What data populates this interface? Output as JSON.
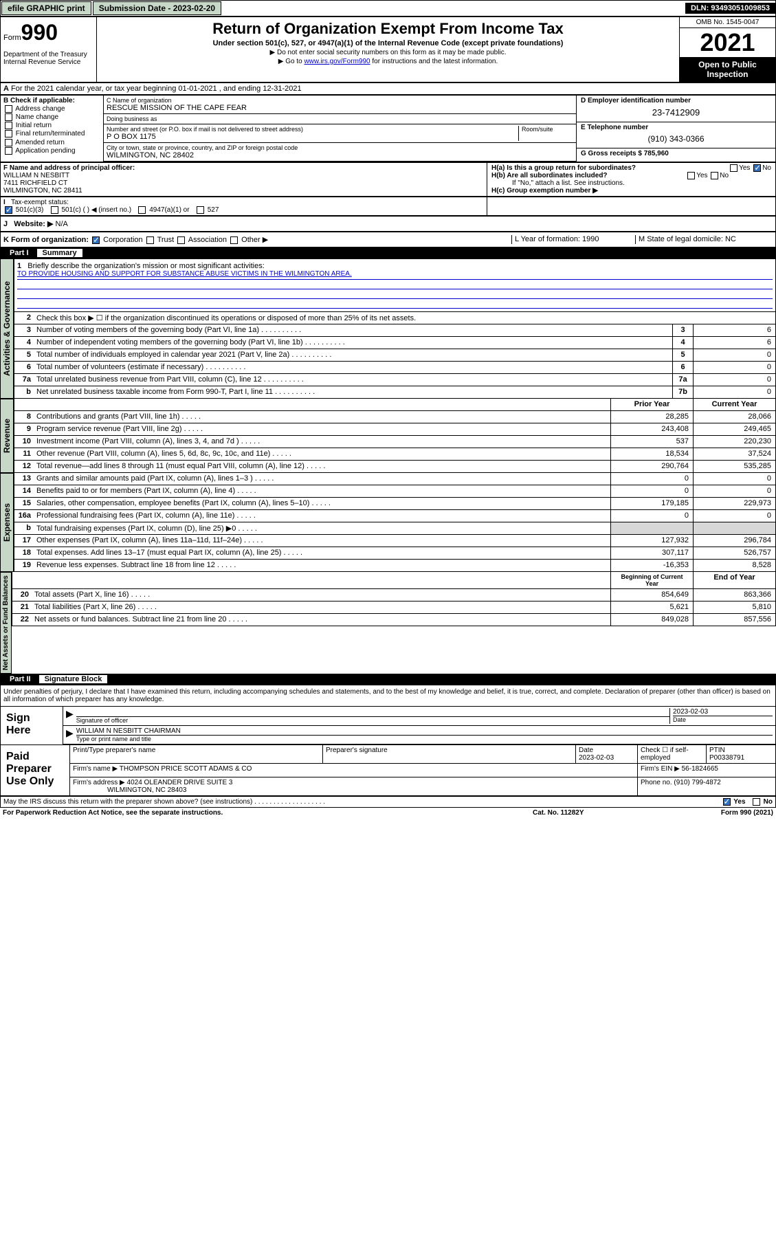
{
  "topbar": {
    "efile": "efile GRAPHIC print",
    "sub_label": "Submission Date - 2023-02-20",
    "dln": "DLN: 93493051009853"
  },
  "header": {
    "form_prefix": "Form",
    "form_num": "990",
    "dept": "Department of the Treasury\nInternal Revenue Service",
    "title": "Return of Organization Exempt From Income Tax",
    "sub1": "Under section 501(c), 527, or 4947(a)(1) of the Internal Revenue Code (except private foundations)",
    "note1": "▶ Do not enter social security numbers on this form as it may be made public.",
    "note2_pre": "▶ Go to ",
    "note2_link": "www.irs.gov/Form990",
    "note2_post": " for instructions and the latest information.",
    "omb": "OMB No. 1545-0047",
    "year": "2021",
    "inspect": "Open to Public Inspection"
  },
  "row_a": {
    "text": "For the 2021 calendar year, or tax year beginning 01-01-2021   , and ending 12-31-2021"
  },
  "col_b": {
    "hdr": "B Check if applicable:",
    "items": [
      "Address change",
      "Name change",
      "Initial return",
      "Final return/terminated",
      "Amended return",
      "Application pending"
    ]
  },
  "col_c": {
    "name_label": "C Name of organization",
    "name": "RESCUE MISSION OF THE CAPE FEAR",
    "dba_label": "Doing business as",
    "dba": "",
    "addr_label": "Number and street (or P.O. box if mail is not delivered to street address)",
    "room_label": "Room/suite",
    "addr": "P O BOX 1175",
    "city_label": "City or town, state or province, country, and ZIP or foreign postal code",
    "city": "WILMINGTON, NC  28402"
  },
  "col_d": {
    "d_label": "D Employer identification number",
    "d_val": "23-7412909",
    "e_label": "E Telephone number",
    "e_val": "(910) 343-0366",
    "g_label": "G Gross receipts $",
    "g_val": "785,960"
  },
  "row_f": {
    "label": "F Name and address of principal officer:",
    "name": "WILLIAM N NESBITT",
    "addr": "7411 RICHFIELD CT",
    "city": "WILMINGTON, NC  28411"
  },
  "row_h": {
    "a": "H(a)  Is this a group return for subordinates?",
    "a_yes": "Yes",
    "a_no": "No",
    "b": "H(b)  Are all subordinates included?",
    "b_yes": "Yes",
    "b_no": "No",
    "b_note": "If \"No,\" attach a list. See instructions.",
    "c": "H(c)  Group exemption number ▶"
  },
  "row_i": {
    "label": "Tax-exempt status:",
    "opts": [
      "501(c)(3)",
      "501(c) (  ) ◀ (insert no.)",
      "4947(a)(1) or",
      "527"
    ]
  },
  "row_j": {
    "label": "Website: ▶",
    "val": "N/A"
  },
  "row_k": {
    "k": "K Form of organization:",
    "opts": [
      "Corporation",
      "Trust",
      "Association",
      "Other ▶"
    ],
    "l": "L Year of formation: 1990",
    "m": "M State of legal domicile: NC"
  },
  "part1": {
    "num": "Part I",
    "title": "Summary"
  },
  "mission": {
    "q": "Briefly describe the organization's mission or most significant activities:",
    "text": "TO PROVIDE HOUSING AND SUPPORT FOR SUBSTANCE ABUSE VICTIMS IN THE WILMINGTON AREA."
  },
  "lines_gov": [
    {
      "n": "2",
      "d": "Check this box ▶ ☐  if the organization discontinued its operations or disposed of more than 25% of its net assets."
    },
    {
      "n": "3",
      "d": "Number of voting members of the governing body (Part VI, line 1a)",
      "b": "3",
      "v": "6"
    },
    {
      "n": "4",
      "d": "Number of independent voting members of the governing body (Part VI, line 1b)",
      "b": "4",
      "v": "6"
    },
    {
      "n": "5",
      "d": "Total number of individuals employed in calendar year 2021 (Part V, line 2a)",
      "b": "5",
      "v": "0"
    },
    {
      "n": "6",
      "d": "Total number of volunteers (estimate if necessary)",
      "b": "6",
      "v": "0"
    },
    {
      "n": "7a",
      "d": "Total unrelated business revenue from Part VIII, column (C), line 12",
      "b": "7a",
      "v": "0"
    },
    {
      "n": "b",
      "d": "Net unrelated business taxable income from Form 990-T, Part I, line 11",
      "b": "7b",
      "v": "0"
    }
  ],
  "rev_hdr": {
    "prior": "Prior Year",
    "curr": "Current Year"
  },
  "lines_rev": [
    {
      "n": "8",
      "d": "Contributions and grants (Part VIII, line 1h)",
      "p": "28,285",
      "c": "28,066"
    },
    {
      "n": "9",
      "d": "Program service revenue (Part VIII, line 2g)",
      "p": "243,408",
      "c": "249,465"
    },
    {
      "n": "10",
      "d": "Investment income (Part VIII, column (A), lines 3, 4, and 7d )",
      "p": "537",
      "c": "220,230"
    },
    {
      "n": "11",
      "d": "Other revenue (Part VIII, column (A), lines 5, 6d, 8c, 9c, 10c, and 11e)",
      "p": "18,534",
      "c": "37,524"
    },
    {
      "n": "12",
      "d": "Total revenue—add lines 8 through 11 (must equal Part VIII, column (A), line 12)",
      "p": "290,764",
      "c": "535,285"
    }
  ],
  "lines_exp": [
    {
      "n": "13",
      "d": "Grants and similar amounts paid (Part IX, column (A), lines 1–3 )",
      "p": "0",
      "c": "0"
    },
    {
      "n": "14",
      "d": "Benefits paid to or for members (Part IX, column (A), line 4)",
      "p": "0",
      "c": "0"
    },
    {
      "n": "15",
      "d": "Salaries, other compensation, employee benefits (Part IX, column (A), lines 5–10)",
      "p": "179,185",
      "c": "229,973"
    },
    {
      "n": "16a",
      "d": "Professional fundraising fees (Part IX, column (A), line 11e)",
      "p": "0",
      "c": "0"
    },
    {
      "n": "b",
      "d": "Total fundraising expenses (Part IX, column (D), line 25) ▶0",
      "p": "",
      "c": "",
      "gray": true
    },
    {
      "n": "17",
      "d": "Other expenses (Part IX, column (A), lines 11a–11d, 11f–24e)",
      "p": "127,932",
      "c": "296,784"
    },
    {
      "n": "18",
      "d": "Total expenses. Add lines 13–17 (must equal Part IX, column (A), line 25)",
      "p": "307,117",
      "c": "526,757"
    },
    {
      "n": "19",
      "d": "Revenue less expenses. Subtract line 18 from line 12",
      "p": "-16,353",
      "c": "8,528"
    }
  ],
  "na_hdr": {
    "beg": "Beginning of Current Year",
    "end": "End of Year"
  },
  "lines_na": [
    {
      "n": "20",
      "d": "Total assets (Part X, line 16)",
      "p": "854,649",
      "c": "863,366"
    },
    {
      "n": "21",
      "d": "Total liabilities (Part X, line 26)",
      "p": "5,621",
      "c": "5,810"
    },
    {
      "n": "22",
      "d": "Net assets or fund balances. Subtract line 21 from line 20",
      "p": "849,028",
      "c": "857,556"
    }
  ],
  "vert": {
    "gov": "Activities & Governance",
    "rev": "Revenue",
    "exp": "Expenses",
    "na": "Net Assets or\nFund Balances"
  },
  "part2": {
    "num": "Part II",
    "title": "Signature Block"
  },
  "sig": {
    "intro": "Under penalties of perjury, I declare that I have examined this return, including accompanying schedules and statements, and to the best of my knowledge and belief, it is true, correct, and complete. Declaration of preparer (other than officer) is based on all information of which preparer has any knowledge.",
    "here": "Sign Here",
    "sig_label": "Signature of officer",
    "date": "2023-02-03",
    "date_label": "Date",
    "name": "WILLIAM N NESBITT CHAIRMAN",
    "name_label": "Type or print name and title"
  },
  "prep": {
    "label": "Paid Preparer Use Only",
    "h1": "Print/Type preparer's name",
    "h2": "Preparer's signature",
    "h3": "Date",
    "h3v": "2023-02-03",
    "h4": "Check ☐ if self-employed",
    "h5": "PTIN",
    "h5v": "P00338791",
    "firm_name_l": "Firm's name    ▶",
    "firm_name": "THOMPSON PRICE SCOTT ADAMS & CO",
    "firm_ein_l": "Firm's EIN ▶",
    "firm_ein": "56-1824665",
    "firm_addr_l": "Firm's address ▶",
    "firm_addr": "4024 OLEANDER DRIVE SUITE 3",
    "firm_city": "WILMINGTON, NC  28403",
    "phone_l": "Phone no.",
    "phone": "(910) 799-4872"
  },
  "footer": {
    "q": "May the IRS discuss this return with the preparer shown above? (see instructions)",
    "yes": "Yes",
    "no": "No",
    "pra": "For Paperwork Reduction Act Notice, see the separate instructions.",
    "cat": "Cat. No. 11282Y",
    "form": "Form 990 (2021)"
  }
}
